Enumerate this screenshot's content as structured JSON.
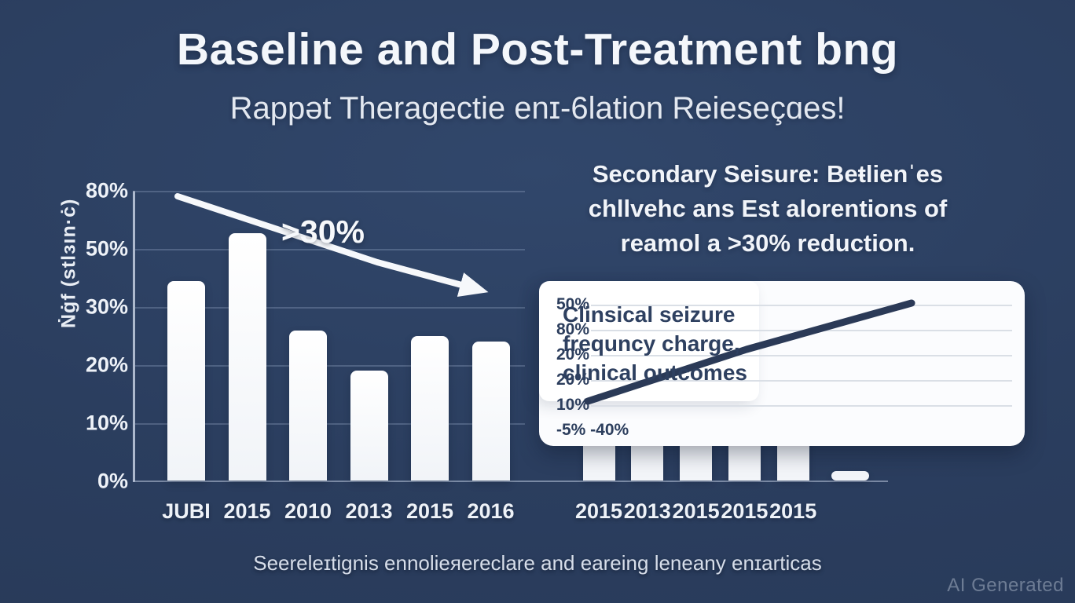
{
  "page": {
    "title": "Baseline and Post-Treatment bng",
    "subtitle": "Rappət Theragectie enɪ-6lation Reieseçɑes!",
    "caption": "Seereleɪtignis ennolieяereclare and eareing leneany enɪarticas",
    "watermark": "AI Generated"
  },
  "colors": {
    "background": "#2b3e5f",
    "bar_white": "#f3f5f9",
    "text_white": "#f2f5f9",
    "panel_white": "#fbfcfe",
    "navy_ink": "#2e4060",
    "grid_on_navy": "#a8bad6",
    "grid_on_white": "#dadfe6",
    "line_navy": "#2b3a57"
  },
  "left_chart": {
    "ylabel": "Ṅġf (stlɜın·ċ)",
    "ytick_labels": [
      "80%",
      "50%",
      "30%",
      "20%",
      "10%",
      "0%"
    ],
    "categories": [
      "JUBI",
      "2015",
      "2010",
      "2013",
      "2015",
      "2016"
    ],
    "values": [
      39,
      58,
      26,
      19,
      25,
      24
    ],
    "annotation": ">30%"
  },
  "right_text": {
    "line1": "Secondary Seisure: Beŧlienˈes",
    "line2": "chllvehc ans Est alorentions of",
    "line3_pre": "reamol a ",
    "line3_bold": ">30%",
    "line3_post": " reduction."
  },
  "inset": {
    "ytick_labels": [
      "50%",
      "80%",
      "20%",
      "20%",
      "10%",
      "-5% -40%"
    ],
    "gridline_rows": 5,
    "card_lines": [
      "Clinsical seizure",
      "frequncy charge,",
      "clinical outcomes"
    ]
  },
  "right_chart": {
    "categories": [
      "2015",
      "2013",
      "2015",
      "2015",
      "2015"
    ],
    "values_visible": [
      null,
      null,
      null,
      null,
      2
    ],
    "note": "bars mostly occluded by white overlay panel; only stubs visible below it"
  },
  "chart_data": [
    {
      "type": "bar",
      "title": "Baseline and Post-Treatment bng",
      "subtitle": "Rappət Theragectie enɪ-6lation Reieseçɑes!",
      "categories": [
        "JUBI",
        "2015",
        "2010",
        "2013",
        "2015",
        "2016"
      ],
      "values": [
        39,
        58,
        26,
        19,
        25,
        24
      ],
      "xlabel": "",
      "ylabel": "Ṅġf (stlɜın·ċ)",
      "ytick_labels": [
        "80%",
        "50%",
        "30%",
        "20%",
        "10%",
        "0%"
      ],
      "grid": true,
      "legend": false,
      "annotations": [
        {
          "text": ">30%",
          "type": "descending-arrow",
          "from_value": 80,
          "to_x_category_index": 5
        }
      ]
    },
    {
      "type": "line",
      "ytick_labels": [
        "50%",
        "80%",
        "20%",
        "20%",
        "10%",
        "-5% -40%"
      ],
      "series": [
        {
          "name": "trend",
          "points_rows": [
            {
              "x_frac": 0.0,
              "y_row": "10%"
            },
            {
              "x_frac": 1.0,
              "y_row": "50%"
            }
          ]
        }
      ],
      "grid": true,
      "legend": false,
      "annotation_card": [
        "Clinsical seizure",
        "frequncy charge,",
        "clinical outcomes"
      ]
    },
    {
      "type": "bar",
      "categories": [
        "2015",
        "2013",
        "2015",
        "2015",
        "2015"
      ],
      "values": [
        null,
        null,
        null,
        null,
        2
      ],
      "grid": false,
      "legend": false,
      "note": "occluded by inset panel; a sixth short unlabeled bar (~2%) at far right"
    }
  ]
}
